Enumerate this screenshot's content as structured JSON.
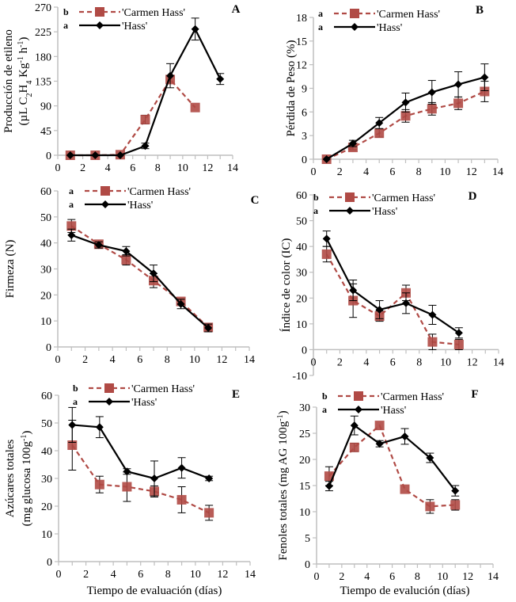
{
  "colors": {
    "carmen": "#b04a45",
    "hass": "#000000",
    "axis": "#bfbfbf"
  },
  "legend": {
    "carmen": "'Carmen Hass'",
    "hass": "'Hass'"
  },
  "chart_data": [
    {
      "id": "A",
      "type": "line",
      "panel_label": "A",
      "ylabel_lines": [
        "Producción de etileno",
        "(µL C2H4 Kg-1 h-1)"
      ],
      "xlabel": "",
      "xlim": [
        0,
        14
      ],
      "xticks": [
        0,
        2,
        4,
        6,
        8,
        10,
        12,
        14
      ],
      "ylim": [
        0,
        270
      ],
      "yticks": [
        0,
        45,
        90,
        135,
        180,
        225,
        270
      ],
      "legend_sig": {
        "carmen": "b",
        "hass": "a"
      },
      "series": [
        {
          "name": "'Carmen Hass'",
          "x": [
            1,
            3,
            5,
            7,
            9,
            11
          ],
          "values": [
            0,
            0,
            1,
            65,
            138,
            87
          ],
          "err": [
            0,
            0,
            0,
            8,
            0,
            0
          ]
        },
        {
          "name": "'Hass'",
          "x": [
            1,
            3,
            5,
            7,
            9,
            11,
            13
          ],
          "values": [
            0,
            0,
            0,
            17,
            145,
            230,
            139
          ],
          "err": [
            0,
            0,
            0,
            5,
            22,
            20,
            10
          ]
        }
      ]
    },
    {
      "id": "B",
      "type": "line",
      "panel_label": "B",
      "ylabel_lines": [
        "Pérdida de Peso (%)"
      ],
      "xlabel": "",
      "xlim": [
        0,
        14
      ],
      "xticks": [
        0,
        2,
        4,
        6,
        8,
        10,
        12,
        14
      ],
      "ylim": [
        0,
        18
      ],
      "yticks": [
        0,
        3,
        6,
        9,
        12,
        15,
        18
      ],
      "legend_sig": {
        "carmen": "a",
        "hass": "a"
      },
      "series": [
        {
          "name": "'Carmen Hass'",
          "x": [
            1,
            3,
            5,
            7,
            9,
            11,
            13
          ],
          "values": [
            0,
            1.5,
            3.3,
            5.5,
            6.4,
            7.1,
            8.6
          ],
          "err": [
            0,
            0.3,
            0.5,
            0.8,
            0.8,
            0.8,
            1.3
          ]
        },
        {
          "name": "'Hass'",
          "x": [
            1,
            3,
            5,
            7,
            9,
            11,
            13
          ],
          "values": [
            0,
            2.0,
            4.6,
            7.2,
            8.5,
            9.5,
            10.4
          ],
          "err": [
            0,
            0.4,
            0.7,
            1.2,
            1.5,
            1.6,
            1.7
          ]
        }
      ]
    },
    {
      "id": "C",
      "type": "line",
      "panel_label": "C",
      "ylabel_lines": [
        "Firmeza (N)"
      ],
      "xlabel": "",
      "xlim": [
        0,
        14
      ],
      "xticks": [
        0,
        2,
        4,
        6,
        8,
        10,
        12,
        14
      ],
      "ylim": [
        0,
        60
      ],
      "yticks": [
        0,
        10,
        20,
        30,
        40,
        50,
        60
      ],
      "legend_sig": {
        "carmen": "a",
        "hass": "a"
      },
      "series": [
        {
          "name": "'Carmen Hass'",
          "x": [
            1,
            3,
            5,
            7,
            9,
            11
          ],
          "values": [
            46.5,
            39.5,
            33.5,
            25.5,
            17.5,
            7.5
          ],
          "err": [
            2.5,
            1,
            2,
            2.7,
            1,
            1
          ]
        },
        {
          "name": "'Hass'",
          "x": [
            1,
            3,
            5,
            7,
            9,
            11
          ],
          "values": [
            43,
            39.2,
            36.8,
            28.3,
            16.5,
            7.3
          ],
          "err": [
            2.3,
            1.2,
            1.8,
            3.2,
            1.8,
            1.5
          ]
        }
      ]
    },
    {
      "id": "D",
      "type": "line",
      "panel_label": "D",
      "ylabel_lines": [
        "Índice de color  (IC)"
      ],
      "xlabel": "",
      "xlim": [
        0,
        14
      ],
      "xticks": [
        0,
        2,
        4,
        6,
        8,
        10,
        12,
        14
      ],
      "ylim": [
        -10,
        60
      ],
      "yticks": [
        -10,
        0,
        10,
        20,
        30,
        40,
        50,
        60
      ],
      "legend_sig": {
        "carmen": "b",
        "hass": "a"
      },
      "series": [
        {
          "name": "'Carmen Hass'",
          "x": [
            1,
            3,
            5,
            7,
            9,
            11
          ],
          "values": [
            37,
            19,
            13,
            22,
            3,
            2
          ],
          "err": [
            3,
            6.5,
            2,
            3,
            3,
            2
          ]
        },
        {
          "name": "'Hass'",
          "x": [
            1,
            3,
            5,
            7,
            9,
            11
          ],
          "values": [
            43,
            23,
            15.5,
            18,
            13.5,
            6.5
          ],
          "err": [
            3,
            4,
            3.5,
            4,
            3.7,
            2
          ]
        }
      ]
    },
    {
      "id": "E",
      "type": "line",
      "panel_label": "E",
      "ylabel_lines": [
        "Azúcares totales",
        "(mg glucosa 100g-1)"
      ],
      "xlabel": "Tiempo de evaluación (días)",
      "xlim": [
        0,
        14
      ],
      "xticks": [
        0,
        2,
        4,
        6,
        8,
        10,
        12,
        14
      ],
      "ylim": [
        0,
        60
      ],
      "yticks": [
        0,
        10,
        20,
        30,
        40,
        50,
        60
      ],
      "legend_sig": {
        "carmen": "b",
        "hass": "a"
      },
      "series": [
        {
          "name": "'Carmen Hass'",
          "x": [
            1,
            3,
            5,
            7,
            9,
            11
          ],
          "values": [
            42,
            27.8,
            27,
            25.3,
            22.3,
            17.6
          ],
          "err": [
            9,
            3,
            5.3,
            2,
            4.7,
            2.7
          ]
        },
        {
          "name": "'Hass'",
          "x": [
            1,
            3,
            5,
            7,
            9,
            11
          ],
          "values": [
            49.3,
            48.5,
            32.5,
            30,
            33.8,
            30
          ],
          "err": [
            6.3,
            3.8,
            1,
            6.3,
            3.7,
            0.8
          ]
        }
      ]
    },
    {
      "id": "F",
      "type": "line",
      "panel_label": "F",
      "ylabel_lines": [
        "Fenoles totales (mg AG 100g-1)"
      ],
      "xlabel": "Tiempo de evalución (días)",
      "xlim": [
        0,
        14
      ],
      "xticks": [
        0,
        2,
        4,
        6,
        8,
        10,
        12,
        14
      ],
      "ylim": [
        0,
        30
      ],
      "yticks": [
        0,
        5,
        10,
        15,
        20,
        25,
        30
      ],
      "legend_sig": {
        "carmen": "b",
        "hass": "a"
      },
      "series": [
        {
          "name": "'Carmen Hass'",
          "x": [
            1,
            3,
            5,
            7,
            9,
            11
          ],
          "values": [
            16.8,
            22.3,
            26.5,
            14.3,
            11,
            11.3
          ],
          "err": [
            1.8,
            0.8,
            0,
            0,
            1.3,
            1
          ]
        },
        {
          "name": "'Hass'",
          "x": [
            1,
            3,
            5,
            7,
            9,
            11
          ],
          "values": [
            14.9,
            26.5,
            23,
            24.4,
            20.3,
            14
          ],
          "err": [
            0.9,
            1.8,
            0.6,
            1.5,
            0.9,
            1
          ]
        }
      ]
    }
  ]
}
